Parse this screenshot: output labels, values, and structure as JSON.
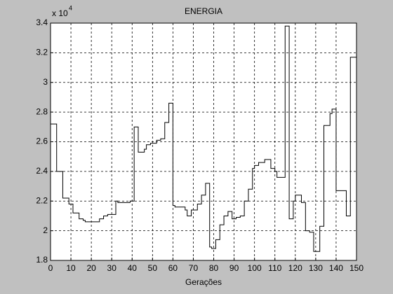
{
  "chart_data": {
    "type": "stairs",
    "title": "ENERGIA",
    "xlabel": "Gerações",
    "y_multiplier": {
      "base": "x 10",
      "exponent": "4"
    },
    "x": [
      0,
      3,
      6,
      9,
      11,
      14,
      16,
      17,
      24,
      26,
      28,
      32,
      33,
      39,
      41,
      43,
      46,
      47,
      49,
      52,
      54,
      56,
      58,
      60,
      61,
      66,
      67,
      69,
      72,
      74,
      76,
      78,
      79,
      81,
      83,
      85,
      87,
      89,
      91,
      93,
      95,
      97,
      99,
      100,
      102,
      105,
      108,
      110,
      111,
      113,
      115,
      117,
      119,
      120,
      123,
      125,
      127,
      129,
      132,
      134,
      137,
      138,
      140,
      142,
      145,
      147,
      150
    ],
    "series": [
      {
        "color": "#000000",
        "values": [
          2.72,
          2.4,
          2.22,
          2.18,
          2.12,
          2.08,
          2.07,
          2.06,
          2.08,
          2.1,
          2.11,
          2.2,
          2.19,
          2.2,
          2.7,
          2.53,
          2.55,
          2.58,
          2.59,
          2.61,
          2.62,
          2.73,
          2.86,
          2.17,
          2.16,
          2.14,
          2.1,
          2.14,
          2.18,
          2.24,
          2.32,
          1.89,
          1.88,
          1.94,
          2.04,
          2.1,
          2.13,
          2.08,
          2.09,
          2.1,
          2.2,
          2.28,
          2.42,
          2.44,
          2.46,
          2.48,
          2.42,
          2.4,
          2.36,
          2.36,
          3.38,
          2.08,
          2.2,
          2.24,
          2.19,
          2.0,
          1.99,
          1.86,
          2.03,
          2.71,
          2.79,
          2.82,
          2.27,
          2.27,
          2.1,
          3.17,
          3.17
        ]
      }
    ],
    "xlim": [
      0,
      150
    ],
    "xticks": [
      0,
      10,
      20,
      30,
      40,
      50,
      60,
      70,
      80,
      90,
      100,
      110,
      120,
      130,
      140,
      150
    ],
    "ylim": [
      1.8,
      3.4
    ],
    "yticks": [
      1.8,
      2,
      2.2,
      2.4,
      2.6,
      2.8,
      3,
      3.2,
      3.4
    ],
    "grid": true
  }
}
